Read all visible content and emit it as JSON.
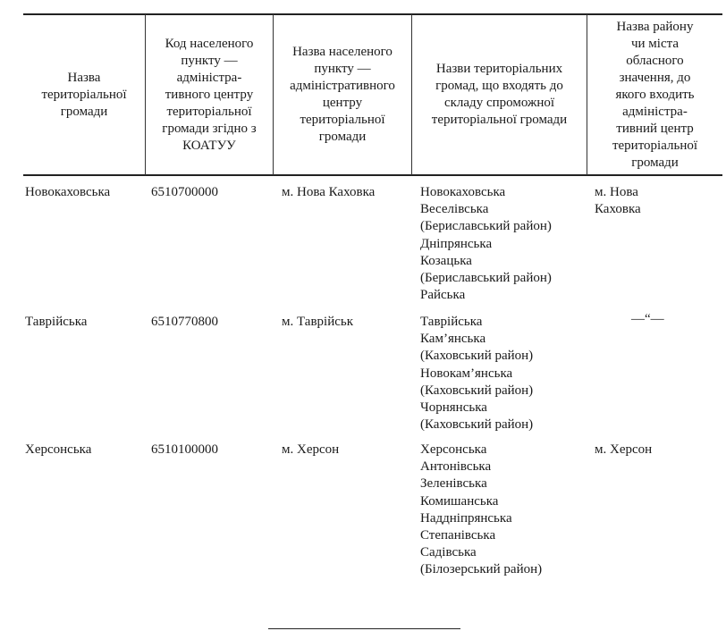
{
  "table": {
    "headers": [
      "Назва\nтериторіальної\nгромади",
      "Код населеного\nпункту —\nадміністра-\nтивного центру\nтериторіальної\nгромади згідно з\nКОАТУУ",
      "Назва населеного\nпункту —\nадміністративного\nцентру\nтериторіальної\nгромади",
      "Назви територіальних\nгромад, що входять до\nскладу спроможної\nтериторіальної громади",
      "Назва району\nчи міста\nобласного\nзначення, до\nякого входить\nадміністра-\nтивний центр\nтериторіальної\nгромади"
    ],
    "rows": [
      {
        "name": "Новокаховська",
        "code": "6510700000",
        "center": "м. Нова Каховка",
        "communities": "Новокаховська\nВеселівська\n(Бериславський район)\nДніпрянська\nКозацька\n(Бериславський район)\nРайська",
        "district": "м. Нова\nКаховка"
      },
      {
        "name": "Таврійська",
        "code": "6510770800",
        "center": "м. Таврійськ",
        "communities": "Таврійська\nКам’янська\n(Каховський район)\nНовокам’янська\n(Каховський район)\nЧорнянська\n(Каховський район)",
        "district": "—“—"
      },
      {
        "name": "Херсонська",
        "code": "6510100000",
        "center": "м. Херсон",
        "communities": "Херсонська\nАнтонівська\nЗеленівська\nКомишанська\nНаддніпрянська\nСтепанівська\nСадівська\n(Білозерський район)",
        "district": "м. Херсон"
      }
    ]
  }
}
